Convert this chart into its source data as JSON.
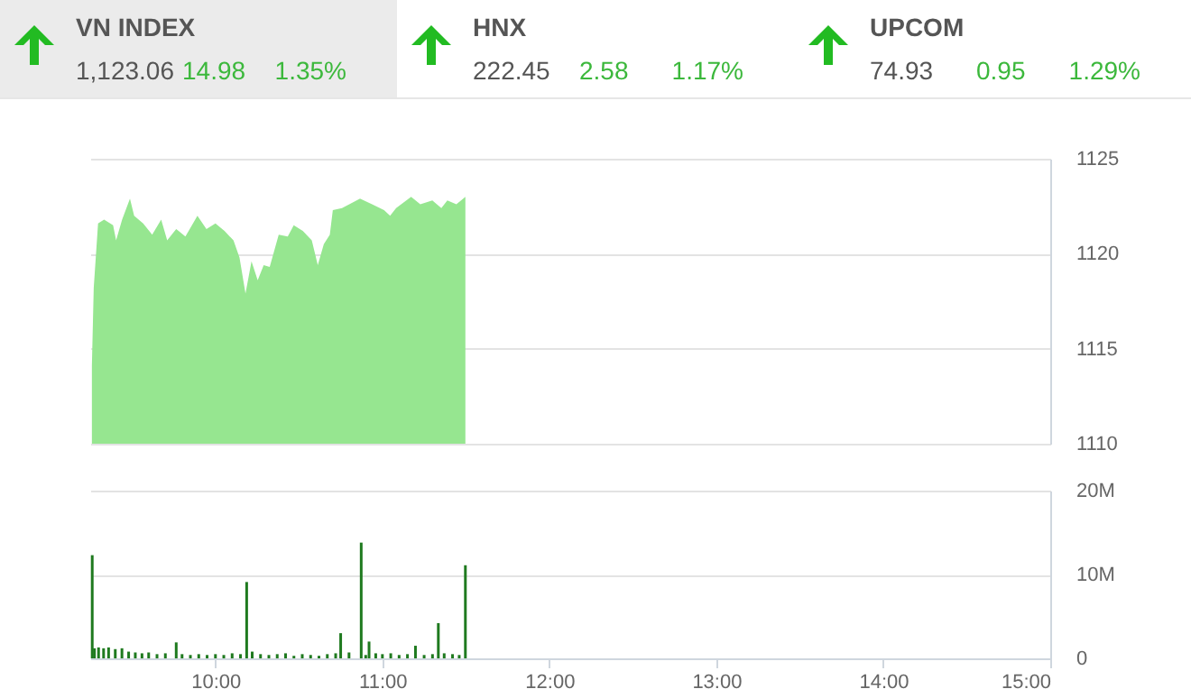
{
  "chart_data": [
    {
      "type": "other",
      "annotations": [
        "VN INDEX",
        "1,123.06",
        "14.98",
        "1.35%",
        "HNX",
        "222.45",
        "2.58",
        "1.17%",
        "UPCOM",
        "74.93",
        "0.95",
        "1.29%"
      ]
    },
    {
      "type": "area",
      "color": "#96e690",
      "tick_labels": "y",
      "grid": "y",
      "xlim": [
        9.25,
        15
      ],
      "ylim": [
        1110,
        1125
      ],
      "yticks": [
        1110,
        1115,
        1120,
        1125
      ],
      "x": [
        9.26,
        9.271,
        9.297,
        9.333,
        9.387,
        9.405,
        9.441,
        9.488,
        9.513,
        9.567,
        9.621,
        9.675,
        9.711,
        9.765,
        9.82,
        9.892,
        9.946,
        10.0,
        10.054,
        10.108,
        10.144,
        10.18,
        10.216,
        10.253,
        10.289,
        10.325,
        10.379,
        10.433,
        10.469,
        10.523,
        10.577,
        10.613,
        10.649,
        10.685,
        10.703,
        10.758,
        10.866,
        10.938,
        11.01,
        11.046,
        11.082,
        11.172,
        11.227,
        11.299,
        11.353,
        11.389,
        11.443,
        11.497
      ],
      "values": [
        1114.1,
        1118.2,
        1121.6,
        1121.8,
        1121.5,
        1120.7,
        1121.8,
        1122.9,
        1122.0,
        1121.6,
        1121.0,
        1121.8,
        1120.7,
        1121.3,
        1120.9,
        1122.0,
        1121.3,
        1121.6,
        1121.2,
        1120.7,
        1119.8,
        1117.9,
        1119.6,
        1118.6,
        1119.4,
        1119.3,
        1121.0,
        1120.9,
        1121.5,
        1121.2,
        1120.7,
        1119.4,
        1120.5,
        1121.0,
        1122.3,
        1122.4,
        1122.9,
        1122.6,
        1122.3,
        1122.0,
        1122.4,
        1123.0,
        1122.6,
        1122.8,
        1122.4,
        1122.8,
        1122.6,
        1123.0
      ]
    },
    {
      "type": "bar",
      "color": "#1f7a1f",
      "grid": "y",
      "xlim": [
        9.25,
        15
      ],
      "xticks": [
        {
          "value": 10,
          "label": "10:00"
        },
        {
          "value": 11,
          "label": "11:00"
        },
        {
          "value": 12,
          "label": "12:00"
        },
        {
          "value": 13,
          "label": "13:00"
        },
        {
          "value": 14,
          "label": "14:00"
        },
        {
          "value": 15,
          "label": "15:00"
        }
      ],
      "ylim": [
        0,
        20
      ],
      "yticks": [
        0,
        {
          "value": 10,
          "label": "10M"
        },
        {
          "value": 20,
          "label": "20M"
        }
      ],
      "x": [
        9.262,
        9.275,
        9.3,
        9.33,
        9.36,
        9.4,
        9.44,
        9.48,
        9.52,
        9.56,
        9.6,
        9.65,
        9.7,
        9.765,
        9.8,
        9.85,
        9.9,
        9.95,
        10.0,
        10.05,
        10.1,
        10.15,
        10.187,
        10.22,
        10.27,
        10.32,
        10.37,
        10.42,
        10.47,
        10.52,
        10.57,
        10.62,
        10.67,
        10.72,
        10.75,
        10.8,
        10.873,
        10.9,
        10.92,
        10.96,
        11.0,
        11.05,
        11.1,
        11.15,
        11.198,
        11.25,
        11.3,
        11.335,
        11.37,
        11.42,
        11.46,
        11.497
      ],
      "values": [
        12.3,
        1.2,
        1.3,
        1.2,
        1.3,
        1.1,
        1.2,
        0.8,
        0.7,
        0.6,
        0.7,
        0.5,
        0.6,
        1.9,
        0.5,
        0.4,
        0.5,
        0.4,
        0.5,
        0.4,
        0.6,
        0.5,
        9.1,
        0.8,
        0.5,
        0.4,
        0.5,
        0.6,
        0.3,
        0.5,
        0.4,
        0.3,
        0.5,
        0.6,
        3.0,
        0.7,
        13.8,
        0.4,
        2.0,
        0.6,
        0.5,
        0.6,
        0.4,
        0.5,
        1.5,
        0.4,
        0.5,
        4.2,
        0.6,
        0.5,
        0.4,
        11.1
      ]
    }
  ]
}
